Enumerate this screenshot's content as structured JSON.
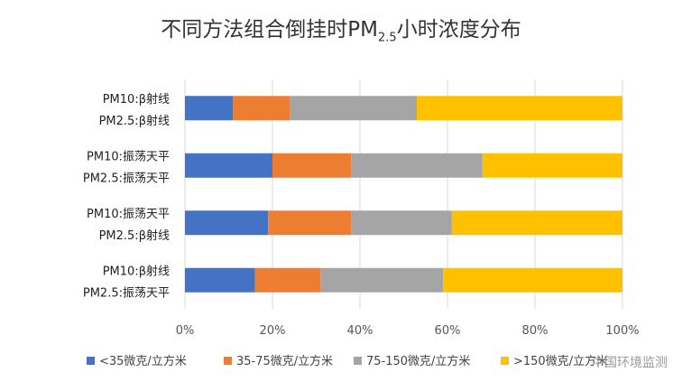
{
  "chart_data": {
    "type": "bar",
    "orientation": "horizontal",
    "stacked": true,
    "percent": true,
    "title_parts": {
      "before": "不同方法组合倒挂时PM",
      "subscript": "2.5",
      "after": "小时浓度分布"
    },
    "categories": [
      {
        "line1": "PM10:β射线",
        "line2": "PM2.5:β射线"
      },
      {
        "line1": "PM10:振荡天平",
        "line2": "PM2.5:振荡天平"
      },
      {
        "line1": "PM10:振荡天平",
        "line2": "PM2.5:β射线"
      },
      {
        "line1": "PM10:β射线",
        "line2": "PM2.5:振荡天平"
      }
    ],
    "series": [
      {
        "name": "<35微克/立方米",
        "color": "#4472C4",
        "values": [
          11,
          20,
          19,
          16
        ]
      },
      {
        "name": "35-75微克/立方米",
        "color": "#ED7D31",
        "values": [
          13,
          18,
          19,
          15
        ]
      },
      {
        "name": "75-150微克/立方米",
        "color": "#A5A5A5",
        "values": [
          29,
          30,
          23,
          28
        ]
      },
      {
        "name": ">150微克/立方米",
        "color": "#FFC000",
        "values": [
          47,
          32,
          39,
          41
        ]
      }
    ],
    "xlim": [
      0,
      100
    ],
    "x_ticks": [
      "0%",
      "20%",
      "40%",
      "60%",
      "80%",
      "100%"
    ],
    "grid": true,
    "legend_position": "bottom"
  },
  "watermark": "中国环境监测"
}
